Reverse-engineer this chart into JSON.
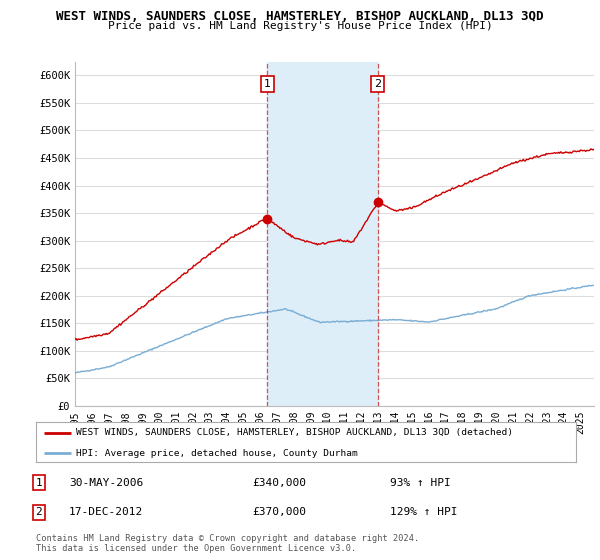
{
  "title": "WEST WINDS, SAUNDERS CLOSE, HAMSTERLEY, BISHOP AUCKLAND, DL13 3QD",
  "subtitle": "Price paid vs. HM Land Registry's House Price Index (HPI)",
  "ylim": [
    0,
    625000
  ],
  "xlim_start": 1995.0,
  "xlim_end": 2025.8,
  "yticks": [
    0,
    50000,
    100000,
    150000,
    200000,
    250000,
    300000,
    350000,
    400000,
    450000,
    500000,
    550000,
    600000
  ],
  "ytick_labels": [
    "£0",
    "£50K",
    "£100K",
    "£150K",
    "£200K",
    "£250K",
    "£300K",
    "£350K",
    "£400K",
    "£450K",
    "£500K",
    "£550K",
    "£600K"
  ],
  "sale1_x": 2006.41,
  "sale1_y": 340000,
  "sale2_x": 2012.96,
  "sale2_y": 370000,
  "sale1_date": "30-MAY-2006",
  "sale1_price": "£340,000",
  "sale1_hpi": "93% ↑ HPI",
  "sale2_date": "17-DEC-2012",
  "sale2_price": "£370,000",
  "sale2_hpi": "129% ↑ HPI",
  "shade_color": "#ddeef8",
  "red_line_color": "#cc0000",
  "blue_line_color": "#7aadd4",
  "marker_color": "#cc0000",
  "legend_line1": "WEST WINDS, SAUNDERS CLOSE, HAMSTERLEY, BISHOP AUCKLAND, DL13 3QD (detached)",
  "legend_line2": "HPI: Average price, detached house, County Durham",
  "footnote": "Contains HM Land Registry data © Crown copyright and database right 2024.\nThis data is licensed under the Open Government Licence v3.0.",
  "background_color": "#ffffff",
  "grid_color": "#dddddd"
}
